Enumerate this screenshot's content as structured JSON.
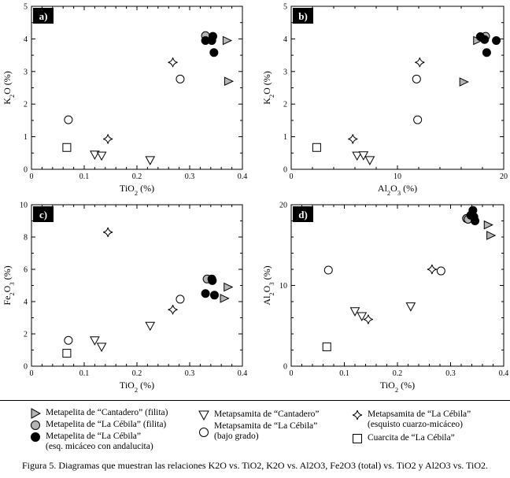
{
  "chart_data": [
    {
      "type": "scatter",
      "panel": "a)",
      "xlabel": "TiO2 (%)",
      "ylabel": "K2O (%)",
      "xlim": [
        0,
        0.4
      ],
      "ylim": [
        0,
        5
      ],
      "xticks": [
        "0",
        "0.1",
        "0.2",
        "0.3",
        "0.4"
      ],
      "yticks": [
        "0",
        "1",
        "2",
        "3",
        "4",
        "5"
      ],
      "series": [
        {
          "name": "cantadero_filita",
          "points": [
            {
              "x": 0.37,
              "y": 3.95
            },
            {
              "x": 0.373,
              "y": 2.7
            }
          ]
        },
        {
          "name": "cebila_filita",
          "points": [
            {
              "x": 0.33,
              "y": 4.1
            }
          ]
        },
        {
          "name": "cebila_andalucita",
          "points": [
            {
              "x": 0.33,
              "y": 3.95
            },
            {
              "x": 0.342,
              "y": 3.95
            },
            {
              "x": 0.344,
              "y": 4.08
            },
            {
              "x": 0.346,
              "y": 3.58
            }
          ]
        },
        {
          "name": "metapsamita_cantadero",
          "points": [
            {
              "x": 0.12,
              "y": 0.45
            },
            {
              "x": 0.133,
              "y": 0.42
            },
            {
              "x": 0.225,
              "y": 0.28
            }
          ]
        },
        {
          "name": "metapsamita_cebila_bajo",
          "points": [
            {
              "x": 0.07,
              "y": 1.52
            },
            {
              "x": 0.282,
              "y": 2.77
            }
          ]
        },
        {
          "name": "metapsamita_cebila_esquisto",
          "points": [
            {
              "x": 0.145,
              "y": 0.93
            },
            {
              "x": 0.268,
              "y": 3.28
            }
          ]
        },
        {
          "name": "cuarcita",
          "points": [
            {
              "x": 0.067,
              "y": 0.67
            }
          ]
        }
      ]
    },
    {
      "type": "scatter",
      "panel": "b)",
      "xlabel": "Al2O3 (%)",
      "ylabel": "K2O (%)",
      "xlim": [
        0,
        20
      ],
      "ylim": [
        0,
        5
      ],
      "xticks": [
        "0",
        "10",
        "20"
      ],
      "yticks": [
        "0",
        "1",
        "2",
        "3",
        "4",
        "5"
      ],
      "series": [
        {
          "name": "cantadero_filita",
          "points": [
            {
              "x": 17.5,
              "y": 3.95
            },
            {
              "x": 16.2,
              "y": 2.68
            }
          ]
        },
        {
          "name": "cebila_filita",
          "points": [
            {
              "x": 18.3,
              "y": 4.08
            }
          ]
        },
        {
          "name": "cebila_andalucita",
          "points": [
            {
              "x": 17.8,
              "y": 4.07
            },
            {
              "x": 18.2,
              "y": 3.98
            },
            {
              "x": 19.3,
              "y": 3.95
            },
            {
              "x": 18.4,
              "y": 3.58
            }
          ]
        },
        {
          "name": "metapsamita_cantadero",
          "points": [
            {
              "x": 6.2,
              "y": 0.42
            },
            {
              "x": 6.8,
              "y": 0.43
            },
            {
              "x": 7.4,
              "y": 0.28
            }
          ]
        },
        {
          "name": "metapsamita_cebila_bajo",
          "points": [
            {
              "x": 11.8,
              "y": 2.77
            },
            {
              "x": 11.9,
              "y": 1.52
            }
          ]
        },
        {
          "name": "metapsamita_cebila_esquisto",
          "points": [
            {
              "x": 5.8,
              "y": 0.93
            },
            {
              "x": 12.1,
              "y": 3.28
            }
          ]
        },
        {
          "name": "cuarcita",
          "points": [
            {
              "x": 2.4,
              "y": 0.67
            }
          ]
        }
      ]
    },
    {
      "type": "scatter",
      "panel": "c)",
      "xlabel": "TiO2 (%)",
      "ylabel": "Fe2O3 (%)",
      "xlim": [
        0,
        0.4
      ],
      "ylim": [
        0,
        10
      ],
      "xticks": [
        "0",
        "0.1",
        "0.2",
        "0.3",
        "0.4"
      ],
      "yticks": [
        "0",
        "2",
        "4",
        "6",
        "8",
        "10"
      ],
      "series": [
        {
          "name": "cantadero_filita",
          "points": [
            {
              "x": 0.372,
              "y": 4.9
            },
            {
              "x": 0.365,
              "y": 4.2
            }
          ]
        },
        {
          "name": "cebila_filita",
          "points": [
            {
              "x": 0.333,
              "y": 5.4
            }
          ]
        },
        {
          "name": "cebila_andalucita",
          "points": [
            {
              "x": 0.33,
              "y": 4.5
            },
            {
              "x": 0.342,
              "y": 5.4
            },
            {
              "x": 0.343,
              "y": 5.3
            },
            {
              "x": 0.347,
              "y": 4.4
            }
          ]
        },
        {
          "name": "metapsamita_cantadero",
          "points": [
            {
              "x": 0.12,
              "y": 1.6
            },
            {
              "x": 0.133,
              "y": 1.2
            },
            {
              "x": 0.225,
              "y": 2.5
            }
          ]
        },
        {
          "name": "metapsamita_cebila_bajo",
          "points": [
            {
              "x": 0.07,
              "y": 1.6
            },
            {
              "x": 0.282,
              "y": 4.15
            }
          ]
        },
        {
          "name": "metapsamita_cebila_esquisto",
          "points": [
            {
              "x": 0.145,
              "y": 8.3
            },
            {
              "x": 0.268,
              "y": 3.5
            }
          ]
        },
        {
          "name": "cuarcita",
          "points": [
            {
              "x": 0.067,
              "y": 0.8
            }
          ]
        }
      ]
    },
    {
      "type": "scatter",
      "panel": "d)",
      "xlabel": "TiO2 (%)",
      "ylabel": "Al2O3 (%)",
      "xlim": [
        0,
        0.4
      ],
      "ylim": [
        0,
        20
      ],
      "xticks": [
        "0",
        "0.1",
        "0.2",
        "0.3",
        "0.4"
      ],
      "yticks": [
        "0",
        "10",
        "20"
      ],
      "series": [
        {
          "name": "cantadero_filita",
          "points": [
            {
              "x": 0.37,
              "y": 17.5
            },
            {
              "x": 0.375,
              "y": 16.2
            }
          ]
        },
        {
          "name": "cebila_filita",
          "points": [
            {
              "x": 0.33,
              "y": 18.3
            },
            {
              "x": 0.333,
              "y": 18.2
            }
          ]
        },
        {
          "name": "cebila_andalucita",
          "points": [
            {
              "x": 0.342,
              "y": 19.3
            },
            {
              "x": 0.344,
              "y": 18.5
            },
            {
              "x": 0.346,
              "y": 18.0
            },
            {
              "x": 0.338,
              "y": 18.7
            }
          ]
        },
        {
          "name": "metapsamita_cantadero",
          "points": [
            {
              "x": 0.12,
              "y": 6.8
            },
            {
              "x": 0.133,
              "y": 6.2
            },
            {
              "x": 0.225,
              "y": 7.4
            }
          ]
        },
        {
          "name": "metapsamita_cebila_bajo",
          "points": [
            {
              "x": 0.07,
              "y": 11.9
            },
            {
              "x": 0.282,
              "y": 11.8
            }
          ]
        },
        {
          "name": "metapsamita_cebila_esquisto",
          "points": [
            {
              "x": 0.145,
              "y": 5.8
            },
            {
              "x": 0.265,
              "y": 12.0
            }
          ]
        },
        {
          "name": "cuarcita",
          "points": [
            {
              "x": 0.067,
              "y": 2.4
            }
          ]
        }
      ]
    }
  ],
  "legend": {
    "cantadero_filita": {
      "line1": "Metapelita de “Cantadero” (filita)"
    },
    "cebila_filita": {
      "line1": "Metapelita de “La Cébila” (filita)"
    },
    "cebila_andalucita": {
      "line1": "Metapelita de “La Cébila”",
      "line2": "(esq. micáceo con andalucita)"
    },
    "metapsamita_cantadero": {
      "line1": "Metapsamita de “Cantadero”"
    },
    "metapsamita_cebila_bajo": {
      "line1": "Metapsamita de “La Cébila”",
      "line2": "(bajo grado)"
    },
    "metapsamita_cebila_esquisto": {
      "line1": "Metapsamita de “La Cébila”",
      "line2": "(esquisto cuarzo-micáceo)"
    },
    "cuarcita": {
      "line1": "Cuarcita de “La Cébila”"
    }
  },
  "colors": {
    "filita_gray": "#b4b4b4",
    "black": "#000000",
    "white": "#ffffff"
  },
  "caption": "Figura 5. Diagramas que muestran las relaciones K2O vs. TiO2, K2O vs. Al2O3, Fe2O3 (total) vs. TiO2 y Al2O3 vs. TiO2."
}
